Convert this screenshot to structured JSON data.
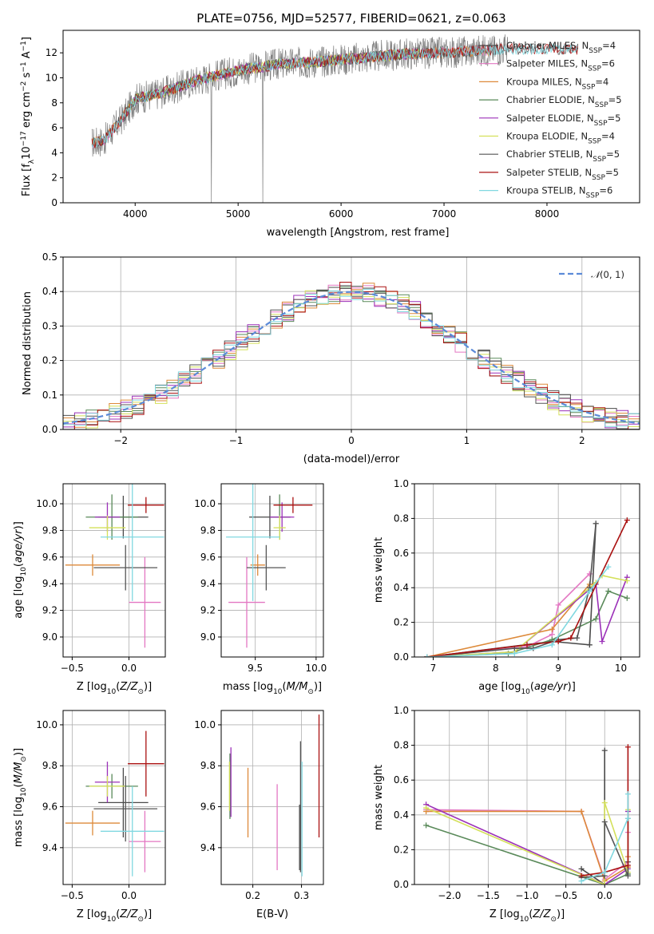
{
  "figure_title": "PLATE=0756, MJD=52577, FIBERID=0621, z=0.063",
  "colors": {
    "Chabrier MILES": "#4a4a4a",
    "Salpeter MILES": "#e377c2",
    "Kroupa MILES": "#dd8a3a",
    "Chabrier ELODIE": "#5a8a5a",
    "Salpeter ELODIE": "#9b30b8",
    "Kroupa ELODIE": "#d4e05a",
    "Chabrier STELIB": "#555555",
    "Salpeter STELIB": "#aa1111",
    "Kroupa STELIB": "#80d8e0",
    "normal_curve": "#5b8ad8",
    "data_spectrum": "#808080"
  },
  "chart_data": [
    {
      "id": "spectrum",
      "type": "line",
      "title": "PLATE=0756, MJD=52577, FIBERID=0621, z=0.063",
      "xlabel": "wavelength [Angstrom, rest frame]",
      "ylabel": "Flux [f_λ 10^-17 erg cm^-2 s^-1 A^-1]",
      "xlim": [
        3300,
        8900
      ],
      "ylim": [
        0,
        13.8
      ],
      "xticks": [
        4000,
        5000,
        6000,
        7000,
        8000
      ],
      "yticks": [
        0,
        2,
        4,
        6,
        8,
        10,
        12
      ],
      "grid": false,
      "legend_position": "right",
      "continuum_points": {
        "x": [
          3580,
          3700,
          3900,
          4000,
          4300,
          4600,
          5000,
          5400,
          5800,
          6200,
          6600,
          7000,
          7400,
          7600
        ],
        "y": [
          4.8,
          5.0,
          7.0,
          8.3,
          8.9,
          9.8,
          10.6,
          11.1,
          11.3,
          11.6,
          11.9,
          12.0,
          12.2,
          12.3
        ]
      },
      "series": [
        {
          "name": "Chabrier MILES",
          "n_ssp": 4,
          "x_range": [
            3580,
            7450
          ]
        },
        {
          "name": "Salpeter MILES",
          "n_ssp": 6,
          "x_range": [
            3580,
            7450
          ]
        },
        {
          "name": "Kroupa MILES",
          "n_ssp": 4,
          "x_range": [
            3580,
            7450
          ]
        },
        {
          "name": "Chabrier ELODIE",
          "n_ssp": 5,
          "x_range": [
            3900,
            6800
          ]
        },
        {
          "name": "Salpeter ELODIE",
          "n_ssp": 5,
          "x_range": [
            3900,
            6800
          ]
        },
        {
          "name": "Kroupa ELODIE",
          "n_ssp": 4,
          "x_range": [
            3900,
            6800
          ]
        },
        {
          "name": "Chabrier STELIB",
          "n_ssp": 5,
          "x_range": [
            3580,
            8300
          ]
        },
        {
          "name": "Salpeter STELIB",
          "n_ssp": 5,
          "x_range": [
            3580,
            8300
          ]
        },
        {
          "name": "Kroupa STELIB",
          "n_ssp": 6,
          "x_range": [
            3580,
            8300
          ]
        }
      ]
    },
    {
      "id": "residuals",
      "type": "line",
      "xlabel": "(data-model)/error",
      "ylabel": "Normed distribution",
      "xlim": [
        -2.5,
        2.5
      ],
      "ylim": [
        0,
        0.5
      ],
      "xticks": [
        -2,
        -1,
        0,
        1,
        2
      ],
      "yticks": [
        0.0,
        0.1,
        0.2,
        0.3,
        0.4,
        0.5
      ],
      "grid": true,
      "legend_position": "upper right",
      "legend": "N(0,1)",
      "bins": {
        "start": -2.5,
        "width": 0.1,
        "count": 50
      }
    },
    {
      "id": "age_vs_Z",
      "type": "scatter",
      "xlabel": "Z [log10(Z/Z_sun)]",
      "ylabel": "age [log10(age/yr)]",
      "xlim": [
        -0.58,
        0.32
      ],
      "ylim": [
        8.85,
        10.15
      ],
      "xticks": [
        -0.5,
        0.0
      ],
      "yticks": [
        9.0,
        9.2,
        9.4,
        9.6,
        9.8,
        10.0
      ],
      "grid": true,
      "points": [
        {
          "name": "Chabrier MILES",
          "x": -0.05,
          "xerr": 0.22,
          "y": 9.9,
          "yerr": 0.16
        },
        {
          "name": "Salpeter MILES",
          "x": 0.14,
          "xerr": 0.14,
          "y": 9.26,
          "yerr": 0.34
        },
        {
          "name": "Kroupa MILES",
          "x": -0.32,
          "xerr": 0.24,
          "y": 9.54,
          "yerr": 0.08
        },
        {
          "name": "Chabrier ELODIE",
          "x": -0.15,
          "xerr": 0.23,
          "y": 9.9,
          "yerr": 0.17
        },
        {
          "name": "Salpeter ELODIE",
          "x": -0.19,
          "xerr": 0.11,
          "y": 9.9,
          "yerr": 0.11
        },
        {
          "name": "Kroupa ELODIE",
          "x": -0.19,
          "xerr": 0.16,
          "y": 9.82,
          "yerr": 0.09
        },
        {
          "name": "Chabrier STELIB",
          "x": -0.03,
          "xerr": 0.28,
          "y": 9.52,
          "yerr": 0.17
        },
        {
          "name": "Salpeter STELIB",
          "x": 0.15,
          "xerr": 0.16,
          "y": 9.99,
          "yerr": 0.06
        },
        {
          "name": "Kroupa STELIB",
          "x": 0.03,
          "xerr": 0.28,
          "y": 9.75,
          "yerr": 0.48
        }
      ]
    },
    {
      "id": "age_vs_mass",
      "type": "scatter",
      "xlabel": "mass [log10(M/M_sun)]",
      "ylabel": "",
      "xlim": [
        9.22,
        10.06
      ],
      "ylim": [
        8.85,
        10.15
      ],
      "xticks": [
        9.5,
        10.0
      ],
      "yticks": [
        9.0,
        9.2,
        9.4,
        9.6,
        9.8,
        10.0
      ],
      "grid": true,
      "points": [
        {
          "name": "Chabrier MILES",
          "x": 9.62,
          "xerr": 0.17,
          "y": 9.9,
          "yerr": 0.16
        },
        {
          "name": "Salpeter MILES",
          "x": 9.43,
          "xerr": 0.15,
          "y": 9.26,
          "yerr": 0.34
        },
        {
          "name": "Kroupa MILES",
          "x": 9.52,
          "xerr": 0.06,
          "y": 9.54,
          "yerr": 0.08
        },
        {
          "name": "Chabrier ELODIE",
          "x": 9.7,
          "xerr": 0.06,
          "y": 9.9,
          "yerr": 0.17
        },
        {
          "name": "Salpeter ELODIE",
          "x": 9.72,
          "xerr": 0.1,
          "y": 9.9,
          "yerr": 0.11
        },
        {
          "name": "Kroupa ELODIE",
          "x": 9.7,
          "xerr": 0.05,
          "y": 9.82,
          "yerr": 0.09
        },
        {
          "name": "Chabrier STELIB",
          "x": 9.59,
          "xerr": 0.16,
          "y": 9.52,
          "yerr": 0.17
        },
        {
          "name": "Salpeter STELIB",
          "x": 9.81,
          "xerr": 0.16,
          "y": 9.99,
          "yerr": 0.06
        },
        {
          "name": "Kroupa STELIB",
          "x": 9.48,
          "xerr": 0.22,
          "y": 9.75,
          "yerr": 0.48
        }
      ]
    },
    {
      "id": "weight_vs_age",
      "type": "line",
      "xlabel": "age [log10(age/yr)]",
      "ylabel": "mass weight",
      "xlim": [
        6.7,
        10.3
      ],
      "ylim": [
        0,
        1.0
      ],
      "xticks": [
        7,
        8,
        9,
        10
      ],
      "yticks": [
        0.0,
        0.2,
        0.4,
        0.6,
        0.8,
        1.0
      ],
      "grid": true,
      "series": [
        {
          "name": "Chabrier MILES",
          "x": [
            6.9,
            8.9,
            9.5,
            9.6
          ],
          "y": [
            0.0,
            0.09,
            0.07,
            0.77
          ]
        },
        {
          "name": "Salpeter MILES",
          "x": [
            6.9,
            8.5,
            8.9,
            9.0,
            9.5
          ],
          "y": [
            0.0,
            0.06,
            0.13,
            0.3,
            0.48
          ]
        },
        {
          "name": "Kroupa MILES",
          "x": [
            6.9,
            8.9,
            9.5,
            9.6
          ],
          "y": [
            0.0,
            0.16,
            0.42,
            0.42
          ]
        },
        {
          "name": "Chabrier ELODIE",
          "x": [
            6.9,
            8.2,
            8.9,
            9.6,
            9.8,
            10.1
          ],
          "y": [
            0.0,
            0.02,
            0.1,
            0.22,
            0.38,
            0.34
          ]
        },
        {
          "name": "Salpeter ELODIE",
          "x": [
            6.9,
            8.3,
            9.6,
            9.7,
            10.1
          ],
          "y": [
            0.0,
            0.03,
            0.42,
            0.09,
            0.46
          ]
        },
        {
          "name": "Kroupa ELODIE",
          "x": [
            6.9,
            8.3,
            9.6,
            9.7,
            10.1
          ],
          "y": [
            0.0,
            0.03,
            0.43,
            0.47,
            0.44
          ]
        },
        {
          "name": "Chabrier STELIB",
          "x": [
            6.9,
            8.3,
            8.6,
            9.0,
            9.3,
            9.5,
            9.6
          ],
          "y": [
            0.0,
            0.05,
            0.05,
            0.1,
            0.11,
            0.4,
            0.77
          ]
        },
        {
          "name": "Salpeter STELIB",
          "x": [
            6.9,
            8.5,
            9.0,
            9.2,
            10.1
          ],
          "y": [
            0.0,
            0.07,
            0.09,
            0.11,
            0.79
          ]
        },
        {
          "name": "Kroupa STELIB",
          "x": [
            6.9,
            8.3,
            8.9,
            9.5,
            9.8
          ],
          "y": [
            0.0,
            0.02,
            0.07,
            0.38,
            0.52
          ]
        }
      ]
    },
    {
      "id": "mass_vs_Z",
      "type": "scatter",
      "xlabel": "Z [log10(Z/Z_sun)]",
      "ylabel": "mass [log10(M/M_sun)]",
      "xlim": [
        -0.58,
        0.32
      ],
      "ylim": [
        9.22,
        10.07
      ],
      "xticks": [
        -0.5,
        0.0
      ],
      "yticks": [
        9.4,
        9.6,
        9.8,
        10.0
      ],
      "grid": true,
      "points": [
        {
          "name": "Chabrier MILES",
          "x": -0.05,
          "xerr": 0.22,
          "y": 9.62,
          "yerr": 0.17
        },
        {
          "name": "Salpeter MILES",
          "x": 0.14,
          "xerr": 0.14,
          "y": 9.43,
          "yerr": 0.15
        },
        {
          "name": "Kroupa MILES",
          "x": -0.32,
          "xerr": 0.24,
          "y": 9.52,
          "yerr": 0.06
        },
        {
          "name": "Chabrier ELODIE",
          "x": -0.15,
          "xerr": 0.23,
          "y": 9.7,
          "yerr": 0.06
        },
        {
          "name": "Salpeter ELODIE",
          "x": -0.19,
          "xerr": 0.11,
          "y": 9.72,
          "yerr": 0.1
        },
        {
          "name": "Kroupa ELODIE",
          "x": -0.19,
          "xerr": 0.16,
          "y": 9.7,
          "yerr": 0.05
        },
        {
          "name": "Chabrier STELIB",
          "x": -0.03,
          "xerr": 0.28,
          "y": 9.59,
          "yerr": 0.16
        },
        {
          "name": "Salpeter STELIB",
          "x": 0.15,
          "xerr": 0.16,
          "y": 9.81,
          "yerr": 0.16
        },
        {
          "name": "Kroupa STELIB",
          "x": 0.03,
          "xerr": 0.28,
          "y": 9.48,
          "yerr": 0.22
        }
      ]
    },
    {
      "id": "mass_vs_ebv",
      "type": "scatter",
      "xlabel": "E(B-V)",
      "ylabel": "",
      "xlim": [
        0.135,
        0.345
      ],
      "ylim": [
        9.22,
        10.07
      ],
      "xticks": [
        0.2,
        0.3
      ],
      "yticks": [
        9.4,
        9.6,
        9.8,
        10.0
      ],
      "grid": true,
      "points": [
        {
          "name": "Chabrier MILES",
          "x": 0.296,
          "y": 9.45,
          "yerr": 0.16
        },
        {
          "name": "Salpeter MILES",
          "x": 0.25,
          "y": 9.5,
          "yerr": 0.21
        },
        {
          "name": "Kroupa MILES",
          "x": 0.19,
          "y": 9.62,
          "yerr": 0.17
        },
        {
          "name": "Chabrier ELODIE",
          "x": 0.153,
          "y": 9.7,
          "yerr": 0.16
        },
        {
          "name": "Salpeter ELODIE",
          "x": 0.155,
          "y": 9.72,
          "yerr": 0.17
        },
        {
          "name": "Kroupa ELODIE",
          "x": 0.152,
          "y": 9.7,
          "yerr": 0.12
        },
        {
          "name": "Chabrier STELIB",
          "x": 0.298,
          "y": 9.6,
          "yerr": 0.32
        },
        {
          "name": "Salpeter STELIB",
          "x": 0.336,
          "y": 9.75,
          "yerr": 0.3
        },
        {
          "name": "Kroupa STELIB",
          "x": 0.301,
          "y": 9.54,
          "yerr": 0.28
        }
      ]
    },
    {
      "id": "weight_vs_Z",
      "type": "line",
      "xlabel": "Z [log10(Z/Z_sun)]",
      "ylabel": "mass weight",
      "xlim": [
        -2.45,
        0.45
      ],
      "ylim": [
        0,
        1.0
      ],
      "xticks": [
        -2.0,
        -1.5,
        -1.0,
        -0.5,
        0.0
      ],
      "yticks": [
        0.0,
        0.2,
        0.4,
        0.6,
        0.8,
        1.0
      ],
      "grid": true,
      "series": [
        {
          "name": "Chabrier MILES",
          "x": [
            -0.3,
            0.0,
            0.0
          ],
          "y": [
            0.09,
            0.0,
            0.77
          ]
        },
        {
          "name": "Salpeter MILES",
          "x": [
            -2.3,
            -0.3,
            0.0,
            0.3,
            0.3
          ],
          "y": [
            0.43,
            0.42,
            0.03,
            0.13,
            0.3
          ]
        },
        {
          "name": "Kroupa MILES",
          "x": [
            -2.3,
            -0.3,
            0.0,
            0.3,
            0.3
          ],
          "y": [
            0.42,
            0.42,
            0.02,
            0.1,
            0.16
          ]
        },
        {
          "name": "Chabrier ELODIE",
          "x": [
            -2.3,
            0.0,
            0.3,
            0.3
          ],
          "y": [
            0.34,
            0.0,
            0.06,
            0.38
          ]
        },
        {
          "name": "Salpeter ELODIE",
          "x": [
            -2.3,
            0.0,
            0.3,
            0.3
          ],
          "y": [
            0.46,
            0.0,
            0.09,
            0.42
          ]
        },
        {
          "name": "Kroupa ELODIE",
          "x": [
            -2.3,
            0.0,
            0.0,
            0.3,
            0.3
          ],
          "y": [
            0.44,
            0.0,
            0.47,
            0.07,
            0.43
          ]
        },
        {
          "name": "Chabrier STELIB",
          "x": [
            -0.3,
            0.0,
            0.0,
            0.3,
            0.3
          ],
          "y": [
            0.04,
            0.05,
            0.36,
            0.05,
            0.13
          ]
        },
        {
          "name": "Salpeter STELIB",
          "x": [
            -0.3,
            0.0,
            0.3,
            0.3
          ],
          "y": [
            0.05,
            0.07,
            0.11,
            0.79
          ]
        },
        {
          "name": "Kroupa STELIB",
          "x": [
            -0.3,
            0.0,
            0.3,
            0.3
          ],
          "y": [
            0.02,
            0.07,
            0.38,
            0.52
          ]
        }
      ]
    }
  ]
}
